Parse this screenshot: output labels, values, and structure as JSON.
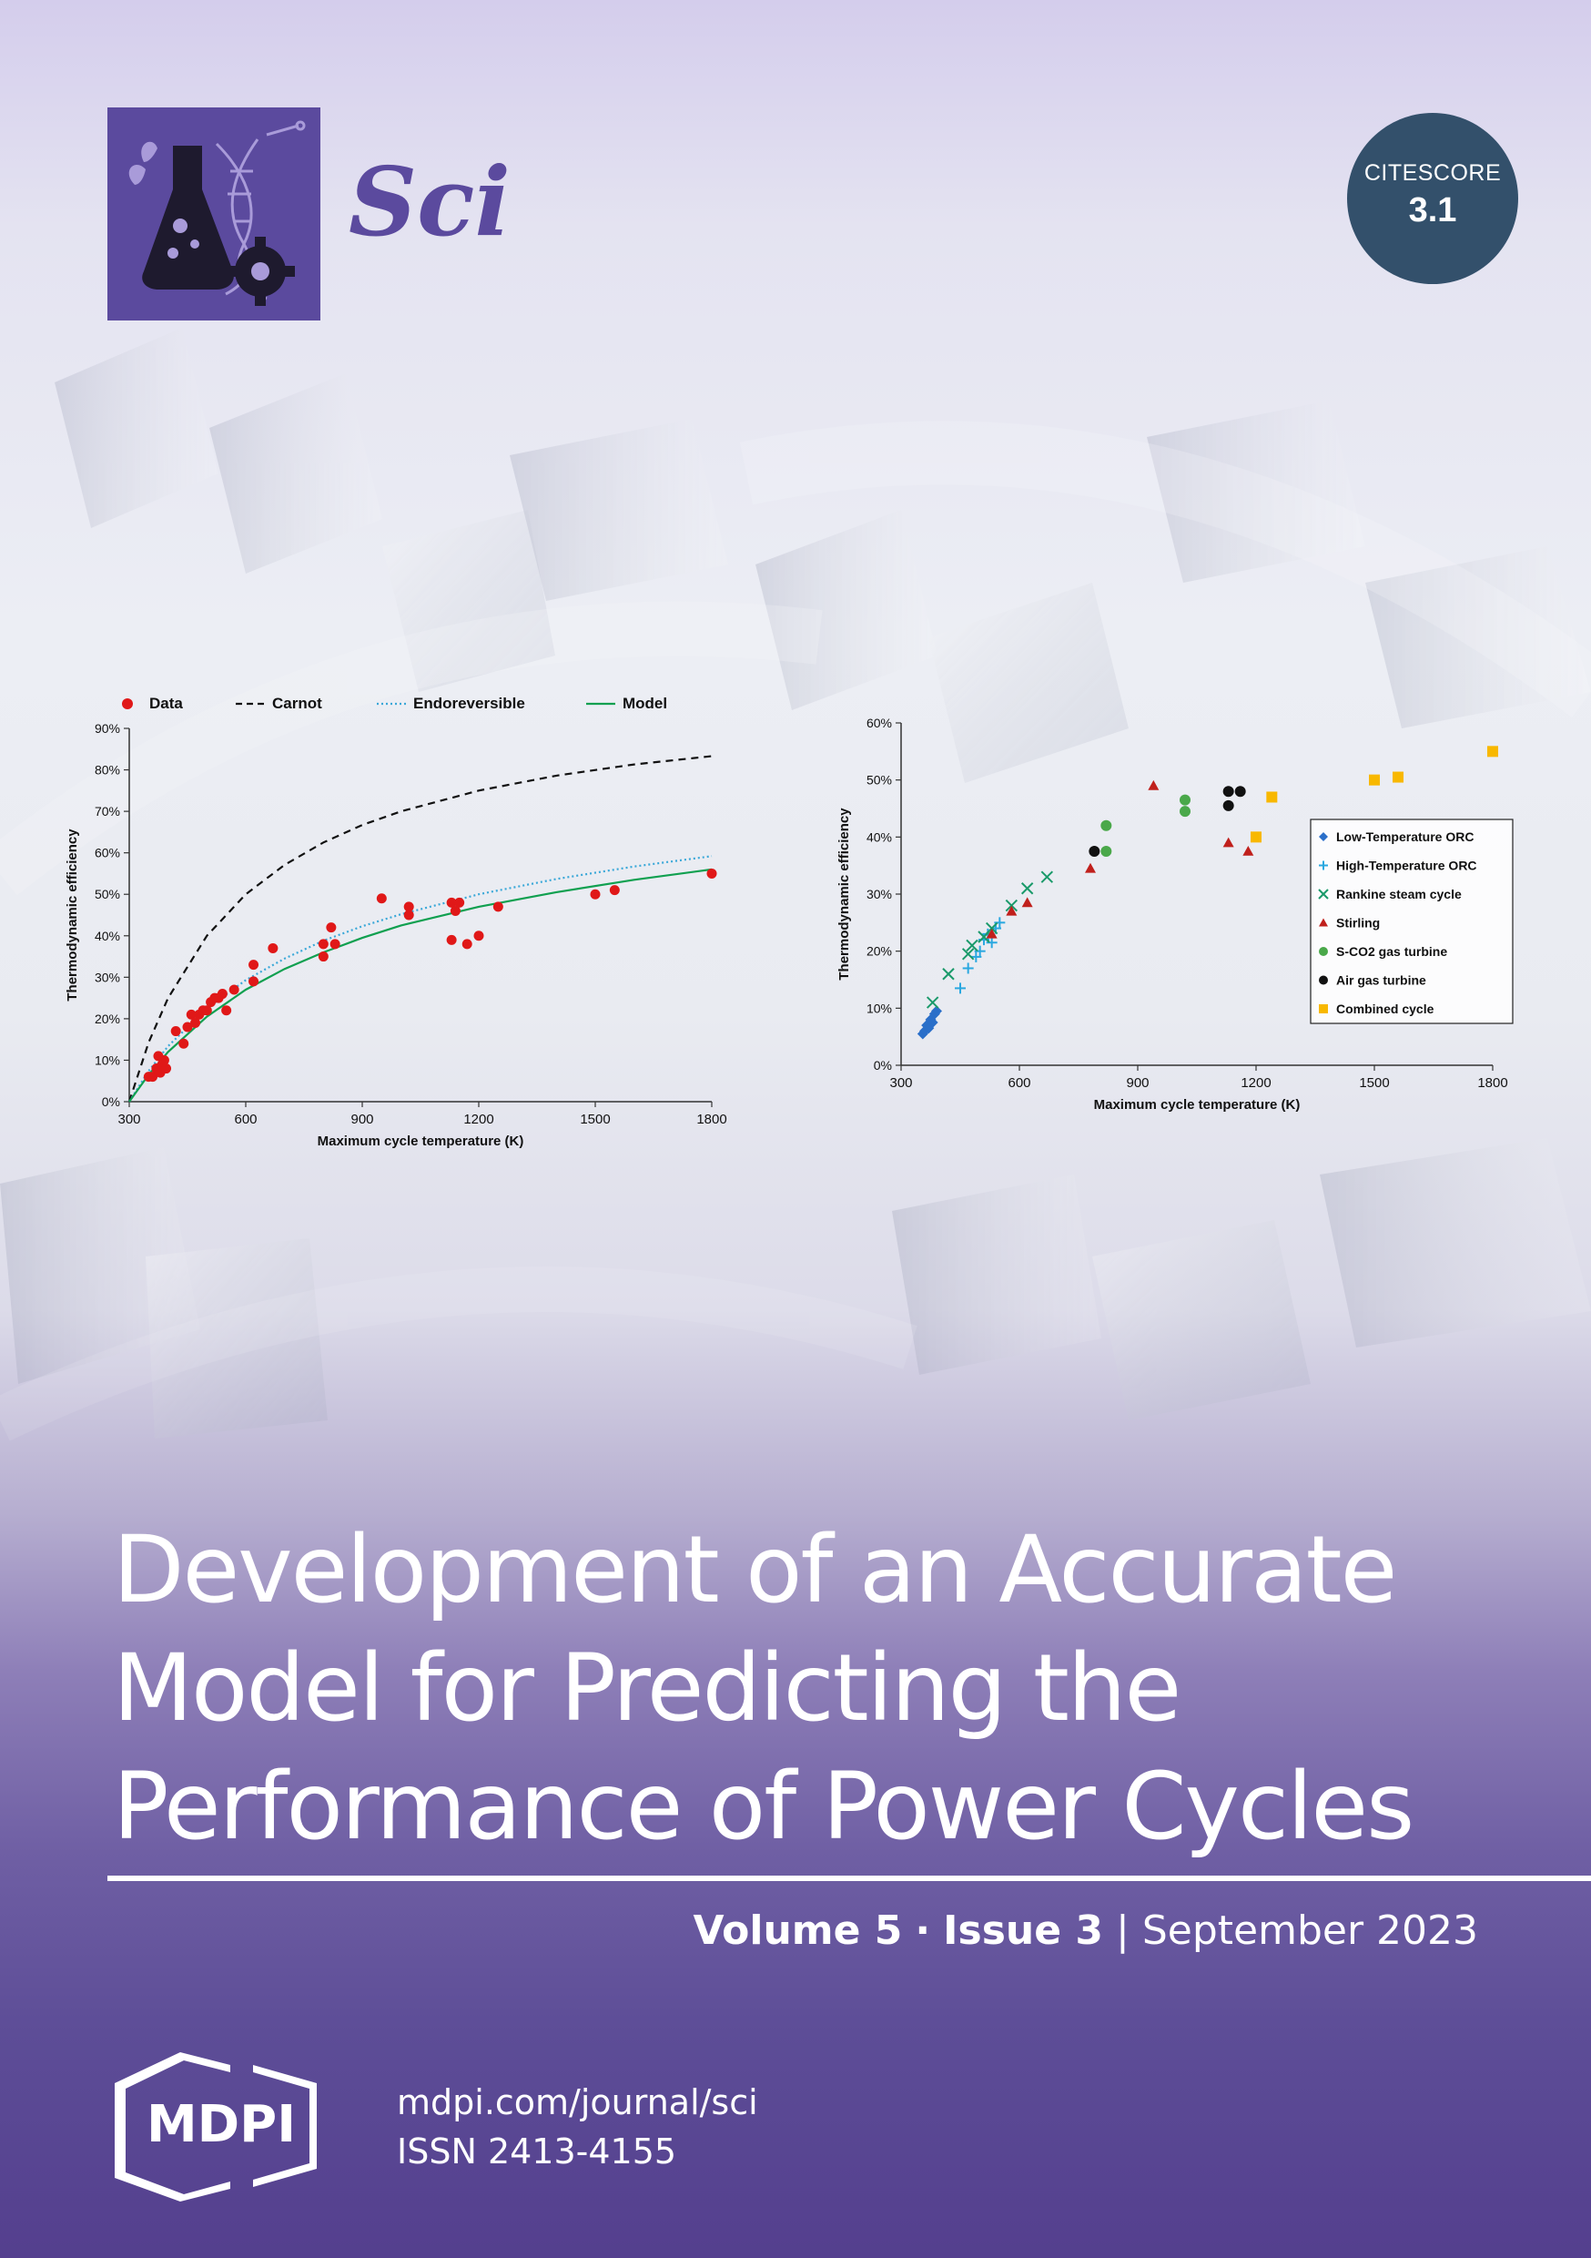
{
  "journal": {
    "name": "Sci",
    "citescore_label": "CITESCORE",
    "citescore_value": "3.1"
  },
  "cover": {
    "title_lines": [
      "Development of an Accurate",
      "Model for Predicting the",
      "Performance of Power Cycles"
    ],
    "volume": "Volume 5",
    "separator": "·",
    "issue": "Issue 3",
    "pipe": "|",
    "date": "September 2023",
    "publisher": "MDPI",
    "url": "mdpi.com/journal/sci",
    "issn": "ISSN 2413-4155"
  },
  "chart_data": [
    {
      "type": "scatter",
      "title": "",
      "xlabel": "Maximum cycle temperature (K)",
      "ylabel": "Thermodynamic efficiency",
      "xlim": [
        300,
        1800
      ],
      "ylim": [
        0,
        90
      ],
      "x_ticks": [
        "300",
        "600",
        "900",
        "1200",
        "1500",
        "1800"
      ],
      "y_ticks": [
        "0%",
        "10%",
        "20%",
        "30%",
        "40%",
        "50%",
        "60%",
        "70%",
        "80%",
        "90%"
      ],
      "legend_position": "top",
      "series": [
        {
          "name": "Data",
          "kind": "points",
          "color": "#e01818",
          "x": [
            350,
            360,
            370,
            375,
            380,
            385,
            390,
            395,
            420,
            440,
            450,
            460,
            470,
            480,
            490,
            500,
            510,
            520,
            530,
            540,
            550,
            570,
            620,
            620,
            670,
            800,
            800,
            820,
            830,
            950,
            1020,
            1020,
            1130,
            1130,
            1140,
            1150,
            1170,
            1200,
            1250,
            1500,
            1550,
            1800
          ],
          "y": [
            6,
            6,
            8,
            11,
            7,
            9,
            10,
            8,
            17,
            14,
            18,
            21,
            19,
            21,
            22,
            22,
            24,
            25,
            25,
            26,
            22,
            27,
            29,
            33,
            37,
            35,
            38,
            42,
            38,
            49,
            47,
            45,
            39,
            48,
            46,
            48,
            38,
            40,
            47,
            50,
            51,
            55
          ]
        },
        {
          "name": "Carnot",
          "kind": "line",
          "style": "dashed",
          "color": "#111111",
          "x": [
            300,
            350,
            400,
            500,
            600,
            700,
            800,
            900,
            1000,
            1200,
            1400,
            1600,
            1800
          ],
          "y": [
            0,
            14.3,
            25,
            40,
            50,
            57.1,
            62.5,
            66.7,
            70,
            75,
            78.6,
            81.3,
            83.3
          ]
        },
        {
          "name": "Endoreversible",
          "kind": "line",
          "style": "dotted",
          "color": "#3aa8d8",
          "x": [
            300,
            350,
            400,
            500,
            600,
            700,
            800,
            900,
            1000,
            1200,
            1400,
            1600,
            1800
          ],
          "y": [
            0,
            7.4,
            13.4,
            22.5,
            29.3,
            34.5,
            38.8,
            42.3,
            45.2,
            50,
            53.7,
            56.7,
            59.2
          ]
        },
        {
          "name": "Model",
          "kind": "line",
          "style": "solid",
          "color": "#10a050",
          "x": [
            300,
            350,
            400,
            500,
            600,
            700,
            800,
            900,
            1000,
            1200,
            1400,
            1600,
            1800
          ],
          "y": [
            0,
            6.5,
            12,
            20.5,
            27,
            32,
            36,
            39.5,
            42.5,
            47,
            50.5,
            53.5,
            56
          ]
        }
      ]
    },
    {
      "type": "scatter",
      "title": "",
      "xlabel": "Maximum cycle temperature (K)",
      "ylabel": "Thermodynamic efficiency",
      "xlim": [
        300,
        1800
      ],
      "ylim": [
        0,
        60
      ],
      "x_ticks": [
        "300",
        "600",
        "900",
        "1200",
        "1500",
        "1800"
      ],
      "y_ticks": [
        "0%",
        "10%",
        "20%",
        "30%",
        "40%",
        "50%",
        "60%"
      ],
      "legend_position": "right",
      "series": [
        {
          "name": "Low-Temperature  ORC",
          "marker": "diamond",
          "color": "#2a6fc9",
          "x": [
            355,
            360,
            365,
            370,
            375,
            380,
            385,
            390
          ],
          "y": [
            5.5,
            6,
            7,
            6.5,
            8,
            7.5,
            9,
            9.5
          ]
        },
        {
          "name": "High-Temperature ORC",
          "marker": "plus",
          "color": "#2aa8e0",
          "x": [
            450,
            470,
            490,
            500,
            510,
            520,
            530,
            540,
            550
          ],
          "y": [
            13.5,
            17,
            19,
            20,
            22,
            23,
            21.5,
            24,
            25
          ]
        },
        {
          "name": "Rankine steam cycle",
          "marker": "x",
          "color": "#1a9a6a",
          "x": [
            380,
            420,
            470,
            480,
            510,
            530,
            580,
            620,
            670
          ],
          "y": [
            11,
            16,
            19.5,
            21,
            22.5,
            24,
            28,
            31,
            33
          ]
        },
        {
          "name": "Stirling",
          "marker": "triangle",
          "color": "#c0201c",
          "x": [
            530,
            580,
            620,
            780,
            940,
            1130,
            1180
          ],
          "y": [
            23,
            27,
            28.5,
            34.5,
            49,
            39,
            37.5
          ]
        },
        {
          "name": "S-CO2 gas turbine",
          "marker": "circle",
          "color": "#4aa84a",
          "x": [
            820,
            820,
            1020,
            1020
          ],
          "y": [
            37.5,
            42,
            44.5,
            46.5
          ]
        },
        {
          "name": "Air gas turbine",
          "marker": "circle",
          "color": "#111111",
          "x": [
            790,
            1130,
            1130,
            1160
          ],
          "y": [
            37.5,
            45.5,
            48,
            48
          ]
        },
        {
          "name": "Combined cycle",
          "marker": "square",
          "color": "#f8b800",
          "x": [
            1200,
            1240,
            1500,
            1560,
            1800
          ],
          "y": [
            40,
            47,
            50,
            50.5,
            55
          ]
        }
      ]
    }
  ]
}
